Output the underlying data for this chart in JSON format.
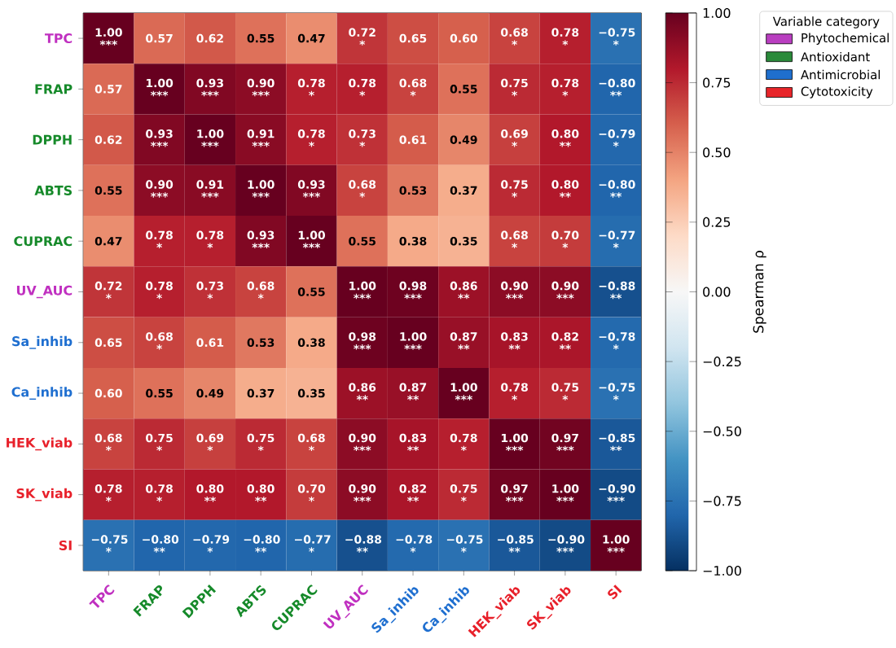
{
  "chart_data": {
    "type": "heatmap",
    "categories": [
      "TPC",
      "FRAP",
      "DPPH",
      "ABTS",
      "CUPRAC",
      "UV_AUC",
      "Sa_inhib",
      "Ca_inhib",
      "HEK_viab",
      "SK_viab",
      "SI"
    ],
    "y_categories": [
      "TPC",
      "FRAP",
      "DPPH",
      "ABTS",
      "CUPRAC",
      "UV_AUC",
      "Sa_inhib",
      "Ca_inhib",
      "HEK_viab",
      "SK_viab",
      "SI"
    ],
    "colors": [
      "#c030c0",
      "#168a2a",
      "#168a2a",
      "#168a2a",
      "#168a2a",
      "#c030c0",
      "#1f6fd0",
      "#1f6fd0",
      "#e8202a",
      "#e8202a",
      "#e8202a"
    ],
    "cells": [
      [
        1.0,
        0.57,
        0.62,
        0.55,
        0.47,
        0.72,
        0.65,
        0.6,
        0.68,
        0.78,
        -0.75
      ],
      [
        0.57,
        1.0,
        0.93,
        0.9,
        0.78,
        0.78,
        0.68,
        0.55,
        0.75,
        0.78,
        -0.8
      ],
      [
        0.62,
        0.93,
        1.0,
        0.91,
        0.78,
        0.73,
        0.61,
        0.49,
        0.69,
        0.8,
        -0.79
      ],
      [
        0.55,
        0.9,
        0.91,
        1.0,
        0.93,
        0.68,
        0.53,
        0.37,
        0.75,
        0.8,
        -0.8
      ],
      [
        0.47,
        0.78,
        0.78,
        0.93,
        1.0,
        0.55,
        0.38,
        0.35,
        0.68,
        0.7,
        -0.77
      ],
      [
        0.72,
        0.78,
        0.73,
        0.68,
        0.55,
        1.0,
        0.98,
        0.86,
        0.9,
        0.9,
        -0.88
      ],
      [
        0.65,
        0.68,
        0.61,
        0.53,
        0.38,
        0.98,
        1.0,
        0.87,
        0.83,
        0.82,
        -0.78
      ],
      [
        0.6,
        0.55,
        0.49,
        0.37,
        0.35,
        0.86,
        0.87,
        1.0,
        0.78,
        0.75,
        -0.75
      ],
      [
        0.68,
        0.75,
        0.69,
        0.75,
        0.68,
        0.9,
        0.83,
        0.78,
        1.0,
        0.97,
        -0.85
      ],
      [
        0.78,
        0.78,
        0.8,
        0.8,
        0.7,
        0.9,
        0.82,
        0.75,
        0.97,
        1.0,
        -0.9
      ],
      [
        -0.75,
        -0.8,
        -0.79,
        -0.8,
        -0.77,
        -0.88,
        -0.78,
        -0.75,
        -0.85,
        -0.9,
        1.0
      ]
    ],
    "cell_labels": [
      [
        "1.00 ***",
        "0.57",
        "0.62",
        "0.55",
        "0.47",
        "0.72 *",
        "0.65",
        "0.60",
        "0.68 *",
        "0.78 *",
        "−0.75 *"
      ],
      [
        "0.57",
        "1.00 ***",
        "0.93 ***",
        "0.90 ***",
        "0.78 *",
        "0.78 *",
        "0.68 *",
        "0.55",
        "0.75 *",
        "0.78 *",
        "−0.80 **"
      ],
      [
        "0.62",
        "0.93 ***",
        "1.00 ***",
        "0.91 ***",
        "0.78 *",
        "0.73 *",
        "0.61",
        "0.49",
        "0.69 *",
        "0.80 **",
        "−0.79 *"
      ],
      [
        "0.55",
        "0.90 ***",
        "0.91 ***",
        "1.00 ***",
        "0.93 ***",
        "0.68 *",
        "0.53",
        "0.37",
        "0.75 *",
        "0.80 **",
        "−0.80 **"
      ],
      [
        "0.47",
        "0.78 *",
        "0.78 *",
        "0.93 ***",
        "1.00 ***",
        "0.55",
        "0.38",
        "0.35",
        "0.68 *",
        "0.70 *",
        "−0.77 *"
      ],
      [
        "0.72 *",
        "0.78 *",
        "0.73 *",
        "0.68 *",
        "0.55",
        "1.00 ***",
        "0.98 ***",
        "0.86 **",
        "0.90 ***",
        "0.90 ***",
        "−0.88 **"
      ],
      [
        "0.65",
        "0.68 *",
        "0.61",
        "0.53",
        "0.38",
        "0.98 ***",
        "1.00 ***",
        "0.87 **",
        "0.83 **",
        "0.82 **",
        "−0.78 *"
      ],
      [
        "0.60",
        "0.55",
        "0.49",
        "0.37",
        "0.35",
        "0.86 **",
        "0.87 **",
        "1.00 ***",
        "0.78 *",
        "0.75 *",
        "−0.75 *"
      ],
      [
        "0.68 *",
        "0.75 *",
        "0.69 *",
        "0.75 *",
        "0.68 *",
        "0.90 ***",
        "0.83 **",
        "0.78 *",
        "1.00 ***",
        "0.97 ***",
        "−0.85 **"
      ],
      [
        "0.78 *",
        "0.78 *",
        "0.80 **",
        "0.80 **",
        "0.70 *",
        "0.90 ***",
        "0.82 **",
        "0.75 *",
        "0.97 ***",
        "1.00 ***",
        "−0.90 ***"
      ],
      [
        "−0.75 *",
        "−0.80 **",
        "−0.79 *",
        "−0.80 **",
        "−0.77 *",
        "−0.88 **",
        "−0.78 *",
        "−0.75 *",
        "−0.85 **",
        "−0.90 ***",
        "1.00 ***"
      ]
    ],
    "clim": [
      -1,
      1
    ],
    "cticks": [
      {
        "value": -1,
        "label": "−1.00"
      },
      {
        "value": -0.75,
        "label": "−0.75"
      },
      {
        "value": -0.5,
        "label": "−0.50"
      },
      {
        "value": -0.25,
        "label": "−0.25"
      },
      {
        "value": 0,
        "label": "0.00"
      },
      {
        "value": 0.25,
        "label": "0.25"
      },
      {
        "value": 0.5,
        "label": "0.50"
      },
      {
        "value": 0.75,
        "label": "0.75"
      },
      {
        "value": 1,
        "label": "1.00"
      }
    ],
    "clabel": "Spearman ρ",
    "legend_title": "Variable category",
    "legend": "right",
    "series": [
      {
        "name": "Phytochemical",
        "color": "#b93ec0",
        "values": [
          null,
          null,
          null,
          null,
          null,
          null,
          null,
          null,
          null,
          null,
          null
        ]
      },
      {
        "name": "Antioxidant",
        "color": "#2a8a3a",
        "values": [
          null,
          null,
          null,
          null,
          null,
          null,
          null,
          null,
          null,
          null,
          null
        ]
      },
      {
        "name": "Antimicrobial",
        "color": "#1f6fce",
        "values": [
          null,
          null,
          null,
          null,
          null,
          null,
          null,
          null,
          null,
          null,
          null
        ]
      },
      {
        "name": "Cytotoxicity",
        "color": "#e8252a",
        "values": [
          null,
          null,
          null,
          null,
          null,
          null,
          null,
          null,
          null,
          null,
          null
        ]
      }
    ]
  }
}
